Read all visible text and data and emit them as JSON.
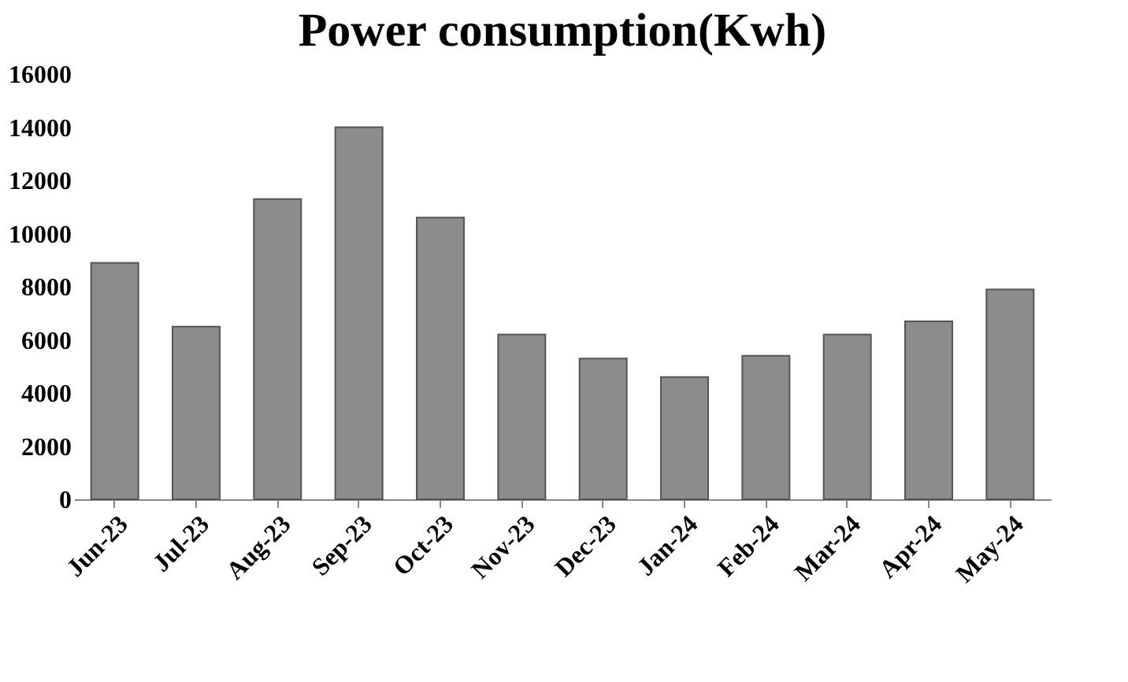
{
  "chart_data": {
    "type": "bar",
    "title": "Power consumption(Kwh)",
    "categories": [
      "Jun-23",
      "Jul-23",
      "Aug-23",
      "Sep-23",
      "Oct-23",
      "Nov-23",
      "Dec-23",
      "Jan-24",
      "Feb-24",
      "Mar-24",
      "Apr-24",
      "May-24"
    ],
    "values": [
      8900,
      6500,
      11300,
      14000,
      10600,
      6200,
      5300,
      4600,
      5400,
      6200,
      6700,
      7900
    ],
    "color": "#8c8c8c",
    "ylim": [
      0,
      16000
    ],
    "yticks": [
      0,
      2000,
      4000,
      6000,
      8000,
      10000,
      12000,
      14000,
      16000
    ],
    "grid": false
  }
}
